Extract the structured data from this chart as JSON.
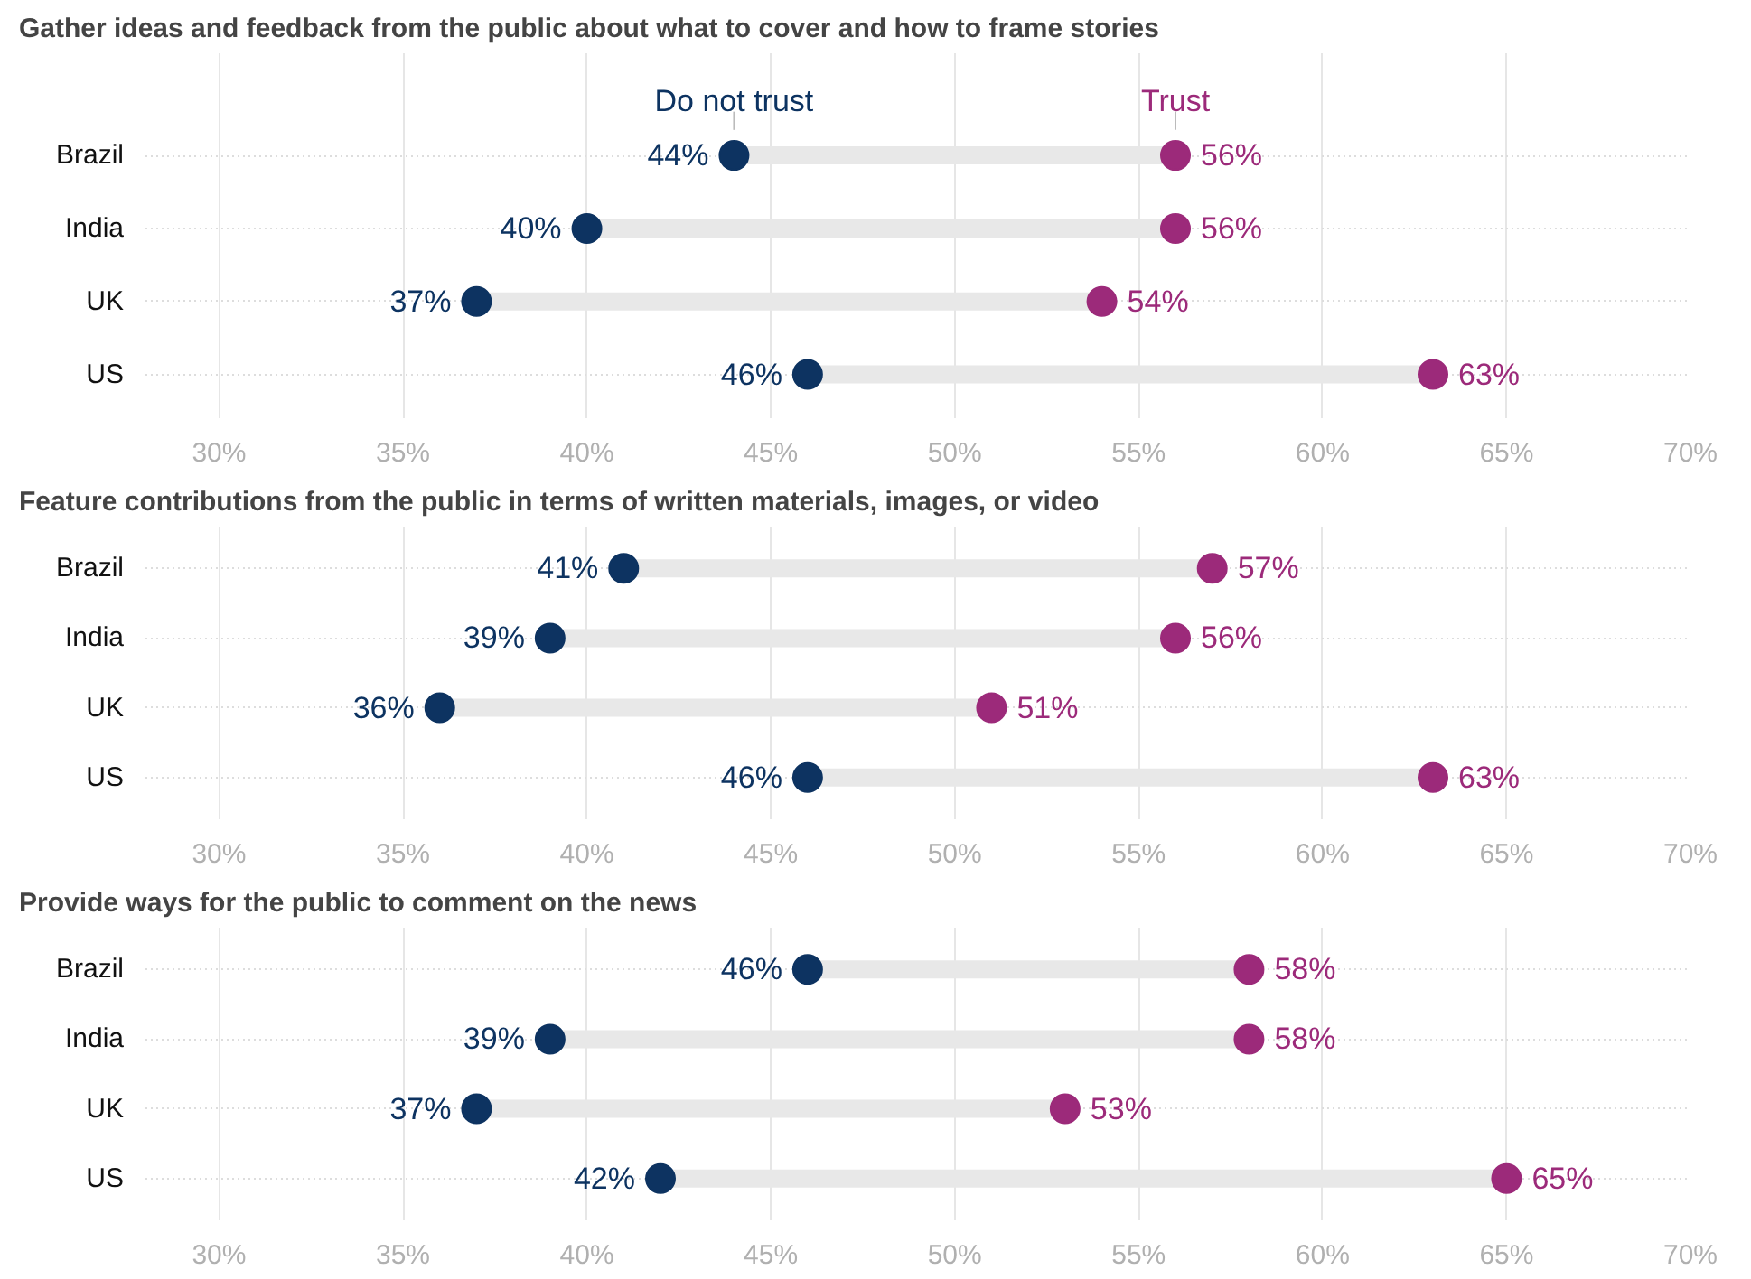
{
  "chart_data": [
    {
      "type": "scatter",
      "orientation": "horizontal",
      "title": "Gather ideas and feedback from the public about what to cover and how to frame stories",
      "categories": [
        "Brazil",
        "India",
        "UK",
        "US"
      ],
      "series": [
        {
          "name": "Do not trust",
          "color": "#0d3361",
          "values": [
            44,
            40,
            37,
            46
          ],
          "value_labels": [
            "44%",
            "40%",
            "37%",
            "46%"
          ]
        },
        {
          "name": "Trust",
          "color": "#9c2a7a",
          "values": [
            56,
            56,
            54,
            63
          ],
          "value_labels": [
            "56%",
            "56%",
            "54%",
            "63%"
          ]
        }
      ],
      "xlim": [
        28,
        70
      ],
      "xticks": [
        {
          "value": 30,
          "label": "30%"
        },
        {
          "value": 35,
          "label": "35%"
        },
        {
          "value": 40,
          "label": "40%"
        },
        {
          "value": 45,
          "label": "45%"
        },
        {
          "value": 50,
          "label": "50%"
        },
        {
          "value": 55,
          "label": "55%"
        },
        {
          "value": 60,
          "label": "60%"
        },
        {
          "value": 65,
          "label": "65%"
        },
        {
          "value": 70,
          "label": "70%"
        }
      ],
      "grid": true,
      "legend": false,
      "marker": "circle"
    },
    {
      "type": "scatter",
      "orientation": "horizontal",
      "title": "Feature contributions from the public in terms of written materials, images, or video",
      "categories": [
        "Brazil",
        "India",
        "UK",
        "US"
      ],
      "series": [
        {
          "color": "#0d3361",
          "values": [
            41,
            39,
            36,
            46
          ],
          "value_labels": [
            "41%",
            "39%",
            "36%",
            "46%"
          ]
        },
        {
          "color": "#9c2a7a",
          "values": [
            57,
            56,
            51,
            63
          ],
          "value_labels": [
            "57%",
            "56%",
            "51%",
            "63%"
          ]
        }
      ],
      "xlim": [
        28,
        70
      ],
      "xticks": [
        {
          "value": 30,
          "label": "30%"
        },
        {
          "value": 35,
          "label": "35%"
        },
        {
          "value": 40,
          "label": "40%"
        },
        {
          "value": 45,
          "label": "45%"
        },
        {
          "value": 50,
          "label": "50%"
        },
        {
          "value": 55,
          "label": "55%"
        },
        {
          "value": 60,
          "label": "60%"
        },
        {
          "value": 65,
          "label": "65%"
        },
        {
          "value": 70,
          "label": "70%"
        }
      ],
      "grid": true,
      "legend": false,
      "marker": "circle"
    },
    {
      "type": "scatter",
      "orientation": "horizontal",
      "title": "Provide ways for the public to comment on the news",
      "categories": [
        "Brazil",
        "India",
        "UK",
        "US"
      ],
      "series": [
        {
          "color": "#0d3361",
          "values": [
            46,
            39,
            37,
            42
          ],
          "value_labels": [
            "46%",
            "39%",
            "37%",
            "42%"
          ]
        },
        {
          "color": "#9c2a7a",
          "values": [
            58,
            58,
            53,
            65
          ],
          "value_labels": [
            "58%",
            "58%",
            "53%",
            "65%"
          ]
        }
      ],
      "xlim": [
        28,
        70
      ],
      "xticks": [
        {
          "value": 30,
          "label": "30%"
        },
        {
          "value": 35,
          "label": "35%"
        },
        {
          "value": 40,
          "label": "40%"
        },
        {
          "value": 45,
          "label": "45%"
        },
        {
          "value": 50,
          "label": "50%"
        },
        {
          "value": 55,
          "label": "55%"
        },
        {
          "value": 60,
          "label": "60%"
        },
        {
          "value": 65,
          "label": "65%"
        },
        {
          "value": 70,
          "label": "70%"
        }
      ],
      "grid": true,
      "legend": false,
      "marker": "circle"
    }
  ]
}
